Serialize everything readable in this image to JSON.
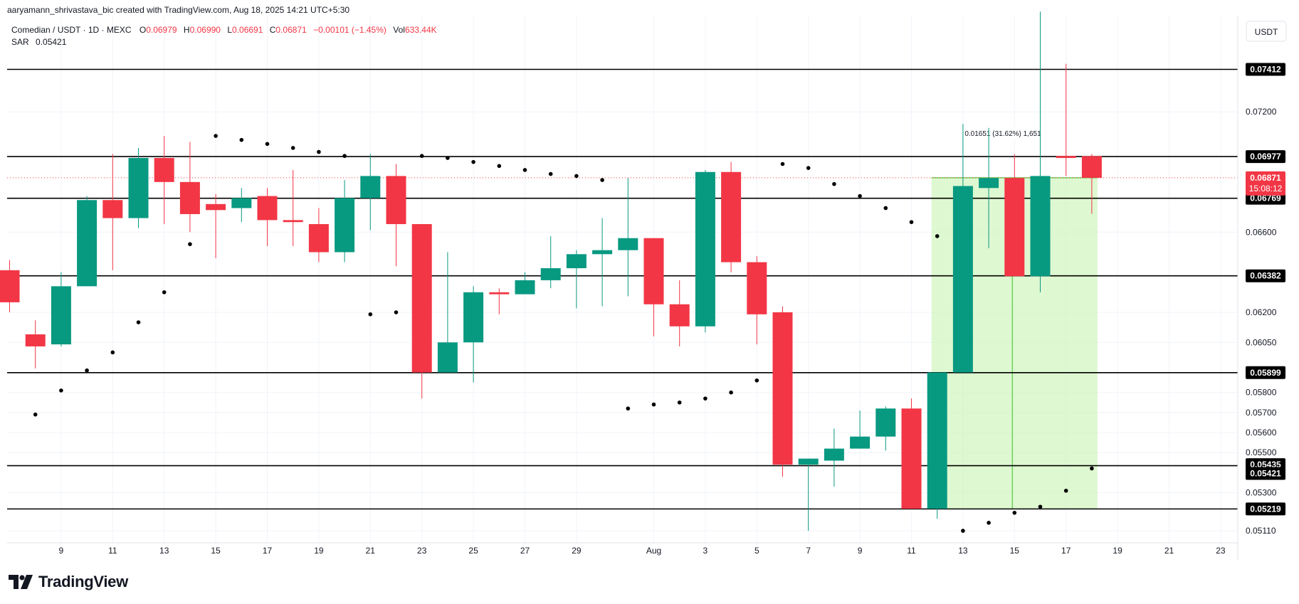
{
  "header": {
    "caption": "aaryamann_shrivastava_bic created with TradingView.com, Aug 18, 2025 14:21 UTC+5:30"
  },
  "legend": {
    "symbol": "Comedian / USDT · 1D · MEXC",
    "o_label": "O",
    "o_value": "0.06979",
    "h_label": "H",
    "h_value": "0.06990",
    "l_label": "L",
    "l_value": "0.06691",
    "c_label": "C",
    "c_value": "0.06871",
    "change": "−0.00101 (−1.45%)",
    "vol_label": "Vol",
    "vol_value": "633.44K",
    "sar_label": "SAR",
    "sar_value": "0.05421"
  },
  "currency_button": "USDT",
  "logo_text": "TradingView",
  "colors": {
    "up": "#089981",
    "down": "#f23645",
    "sar": "#000000",
    "measure_fill": "#ccf5b8",
    "measure_line": "#6fd35a",
    "grid": "#f0f3fa",
    "level": "#000000"
  },
  "chart_data": {
    "type": "candlestick",
    "title": "Comedian / USDT · 1D · MEXC",
    "ylim": [
      0.0505,
      0.0768
    ],
    "x_ticks": [
      "9",
      "11",
      "13",
      "15",
      "17",
      "19",
      "21",
      "23",
      "25",
      "27",
      "29",
      "Aug",
      "3",
      "5",
      "7",
      "9",
      "11",
      "13",
      "15",
      "17",
      "19",
      "21",
      "23"
    ],
    "y_ticks": [
      "0.07200",
      "0.06600",
      "0.06200",
      "0.06050",
      "0.05800",
      "0.05700",
      "0.05600",
      "0.05500",
      "0.05300",
      "0.05110"
    ],
    "y_tick_values": [
      0.072,
      0.066,
      0.062,
      0.0605,
      0.058,
      0.057,
      0.056,
      0.055,
      0.053,
      0.0511
    ],
    "candles": [
      {
        "date": "Jul 7",
        "o": 0.0641,
        "h": 0.0646,
        "l": 0.062,
        "c": 0.0625
      },
      {
        "date": "Jul 8",
        "o": 0.0609,
        "h": 0.0616,
        "l": 0.0592,
        "c": 0.0603
      },
      {
        "date": "Jul 9",
        "o": 0.0604,
        "h": 0.064,
        "l": 0.0603,
        "c": 0.0633
      },
      {
        "date": "Jul 10",
        "o": 0.0633,
        "h": 0.0678,
        "l": 0.0633,
        "c": 0.0676
      },
      {
        "date": "Jul 11",
        "o": 0.0676,
        "h": 0.0699,
        "l": 0.0641,
        "c": 0.0667
      },
      {
        "date": "Jul 12",
        "o": 0.0667,
        "h": 0.0702,
        "l": 0.0662,
        "c": 0.0697
      },
      {
        "date": "Jul 13",
        "o": 0.0697,
        "h": 0.0708,
        "l": 0.0664,
        "c": 0.0685
      },
      {
        "date": "Jul 14",
        "o": 0.0685,
        "h": 0.0705,
        "l": 0.066,
        "c": 0.0669
      },
      {
        "date": "Jul 15",
        "o": 0.0674,
        "h": 0.0679,
        "l": 0.0647,
        "c": 0.0671
      },
      {
        "date": "Jul 16",
        "o": 0.0672,
        "h": 0.0682,
        "l": 0.0665,
        "c": 0.0677
      },
      {
        "date": "Jul 17",
        "o": 0.0678,
        "h": 0.0682,
        "l": 0.0653,
        "c": 0.0666
      },
      {
        "date": "Jul 18",
        "o": 0.0666,
        "h": 0.0691,
        "l": 0.0653,
        "c": 0.0665
      },
      {
        "date": "Jul 19",
        "o": 0.0664,
        "h": 0.0672,
        "l": 0.0645,
        "c": 0.065
      },
      {
        "date": "Jul 20",
        "o": 0.065,
        "h": 0.0686,
        "l": 0.0645,
        "c": 0.0677
      },
      {
        "date": "Jul 21",
        "o": 0.0677,
        "h": 0.0699,
        "l": 0.0661,
        "c": 0.0688
      },
      {
        "date": "Jul 22",
        "o": 0.0688,
        "h": 0.0694,
        "l": 0.0643,
        "c": 0.0664
      },
      {
        "date": "Jul 23",
        "o": 0.0664,
        "h": 0.0664,
        "l": 0.0577,
        "c": 0.059
      },
      {
        "date": "Jul 24",
        "o": 0.059,
        "h": 0.065,
        "l": 0.059,
        "c": 0.0605
      },
      {
        "date": "Jul 25",
        "o": 0.0605,
        "h": 0.0633,
        "l": 0.0585,
        "c": 0.063
      },
      {
        "date": "Jul 26",
        "o": 0.063,
        "h": 0.0632,
        "l": 0.0619,
        "c": 0.0629
      },
      {
        "date": "Jul 27",
        "o": 0.0629,
        "h": 0.064,
        "l": 0.0629,
        "c": 0.0636
      },
      {
        "date": "Jul 28",
        "o": 0.0636,
        "h": 0.0658,
        "l": 0.0632,
        "c": 0.0642
      },
      {
        "date": "Jul 29",
        "o": 0.0642,
        "h": 0.0651,
        "l": 0.0622,
        "c": 0.0649
      },
      {
        "date": "Jul 30",
        "o": 0.0649,
        "h": 0.0667,
        "l": 0.0623,
        "c": 0.0651
      },
      {
        "date": "Jul 31",
        "o": 0.0651,
        "h": 0.0687,
        "l": 0.0628,
        "c": 0.0657
      },
      {
        "date": "Aug 1",
        "o": 0.0657,
        "h": 0.0657,
        "l": 0.0608,
        "c": 0.0624
      },
      {
        "date": "Aug 2",
        "o": 0.0624,
        "h": 0.0636,
        "l": 0.0603,
        "c": 0.0613
      },
      {
        "date": "Aug 3",
        "o": 0.0613,
        "h": 0.0691,
        "l": 0.061,
        "c": 0.069
      },
      {
        "date": "Aug 4",
        "o": 0.069,
        "h": 0.0695,
        "l": 0.064,
        "c": 0.0645
      },
      {
        "date": "Aug 5",
        "o": 0.0645,
        "h": 0.0648,
        "l": 0.0604,
        "c": 0.0619
      },
      {
        "date": "Aug 6",
        "o": 0.062,
        "h": 0.0623,
        "l": 0.0538,
        "c": 0.0544
      },
      {
        "date": "Aug 7",
        "o": 0.0544,
        "h": 0.0547,
        "l": 0.0511,
        "c": 0.0547
      },
      {
        "date": "Aug 8",
        "o": 0.0546,
        "h": 0.0562,
        "l": 0.0533,
        "c": 0.0552
      },
      {
        "date": "Aug 9",
        "o": 0.0552,
        "h": 0.0571,
        "l": 0.0552,
        "c": 0.0558
      },
      {
        "date": "Aug 10",
        "o": 0.0558,
        "h": 0.0573,
        "l": 0.0551,
        "c": 0.0572
      },
      {
        "date": "Aug 11",
        "o": 0.0572,
        "h": 0.0577,
        "l": 0.0522,
        "c": 0.0522
      },
      {
        "date": "Aug 12",
        "o": 0.0522,
        "h": 0.059,
        "l": 0.0517,
        "c": 0.059
      },
      {
        "date": "Aug 13",
        "o": 0.059,
        "h": 0.0714,
        "l": 0.059,
        "c": 0.0683
      },
      {
        "date": "Aug 14",
        "o": 0.0682,
        "h": 0.0712,
        "l": 0.0652,
        "c": 0.0687
      },
      {
        "date": "Aug 15",
        "o": 0.0687,
        "h": 0.0699,
        "l": 0.0638,
        "c": 0.0638
      },
      {
        "date": "Aug 16",
        "o": 0.0638,
        "h": 0.077,
        "l": 0.063,
        "c": 0.0688
      },
      {
        "date": "Aug 17",
        "o": 0.0698,
        "h": 0.0744,
        "l": 0.0688,
        "c": 0.0697
      },
      {
        "date": "Aug 18",
        "o": 0.06979,
        "h": 0.0699,
        "l": 0.06691,
        "c": 0.06871
      }
    ],
    "sar": [
      {
        "date": "Jul 8",
        "value": 0.0569
      },
      {
        "date": "Jul 9",
        "value": 0.0581
      },
      {
        "date": "Jul 10",
        "value": 0.0591
      },
      {
        "date": "Jul 11",
        "value": 0.06
      },
      {
        "date": "Jul 12",
        "value": 0.0615
      },
      {
        "date": "Jul 13",
        "value": 0.063
      },
      {
        "date": "Jul 14",
        "value": 0.0654
      },
      {
        "date": "Jul 15",
        "value": 0.0708
      },
      {
        "date": "Jul 16",
        "value": 0.0706
      },
      {
        "date": "Jul 17",
        "value": 0.0704
      },
      {
        "date": "Jul 18",
        "value": 0.0702
      },
      {
        "date": "Jul 19",
        "value": 0.07
      },
      {
        "date": "Jul 20",
        "value": 0.0698
      },
      {
        "date": "Jul 21",
        "value": 0.0619
      },
      {
        "date": "Jul 22",
        "value": 0.062
      },
      {
        "date": "Jul 23",
        "value": 0.0698
      },
      {
        "date": "Jul 24",
        "value": 0.0697
      },
      {
        "date": "Jul 25",
        "value": 0.0695
      },
      {
        "date": "Jul 26",
        "value": 0.0693
      },
      {
        "date": "Jul 27",
        "value": 0.0691
      },
      {
        "date": "Jul 28",
        "value": 0.0689
      },
      {
        "date": "Jul 29",
        "value": 0.0688
      },
      {
        "date": "Jul 30",
        "value": 0.0686
      },
      {
        "date": "Jul 31",
        "value": 0.0572
      },
      {
        "date": "Aug 1",
        "value": 0.0574
      },
      {
        "date": "Aug 2",
        "value": 0.0575
      },
      {
        "date": "Aug 3",
        "value": 0.0577
      },
      {
        "date": "Aug 4",
        "value": 0.058
      },
      {
        "date": "Aug 5",
        "value": 0.0586
      },
      {
        "date": "Aug 6",
        "value": 0.0694
      },
      {
        "date": "Aug 7",
        "value": 0.0692
      },
      {
        "date": "Aug 8",
        "value": 0.0684
      },
      {
        "date": "Aug 9",
        "value": 0.0678
      },
      {
        "date": "Aug 10",
        "value": 0.0672
      },
      {
        "date": "Aug 11",
        "value": 0.0665
      },
      {
        "date": "Aug 12",
        "value": 0.0658
      },
      {
        "date": "Aug 13",
        "value": 0.0511
      },
      {
        "date": "Aug 14",
        "value": 0.0515
      },
      {
        "date": "Aug 15",
        "value": 0.052
      },
      {
        "date": "Aug 16",
        "value": 0.0523
      },
      {
        "date": "Aug 17",
        "value": 0.0531
      },
      {
        "date": "Aug 18",
        "value": 0.05421
      }
    ],
    "horizontal_levels": [
      {
        "value": 0.07412,
        "label": "0.07412"
      },
      {
        "value": 0.06977,
        "label": "0.06977"
      },
      {
        "value": 0.06769,
        "label": "0.06769"
      },
      {
        "value": 0.06382,
        "label": "0.06382"
      },
      {
        "value": 0.05899,
        "label": "0.05899"
      },
      {
        "value": 0.05435,
        "label": "0.05435"
      },
      {
        "value": 0.05219,
        "label": "0.05219"
      }
    ],
    "sar_label": {
      "value": 0.05421,
      "label": "0.05421"
    },
    "last_price": {
      "value": 0.06871,
      "label": "0.06871",
      "countdown": "15:08:12"
    },
    "measure": {
      "start_date": "Aug 12",
      "end_date": "Aug 18",
      "from": 0.05219,
      "to": 0.06871,
      "label": "0.01651 (31.62%) 1,651"
    }
  }
}
